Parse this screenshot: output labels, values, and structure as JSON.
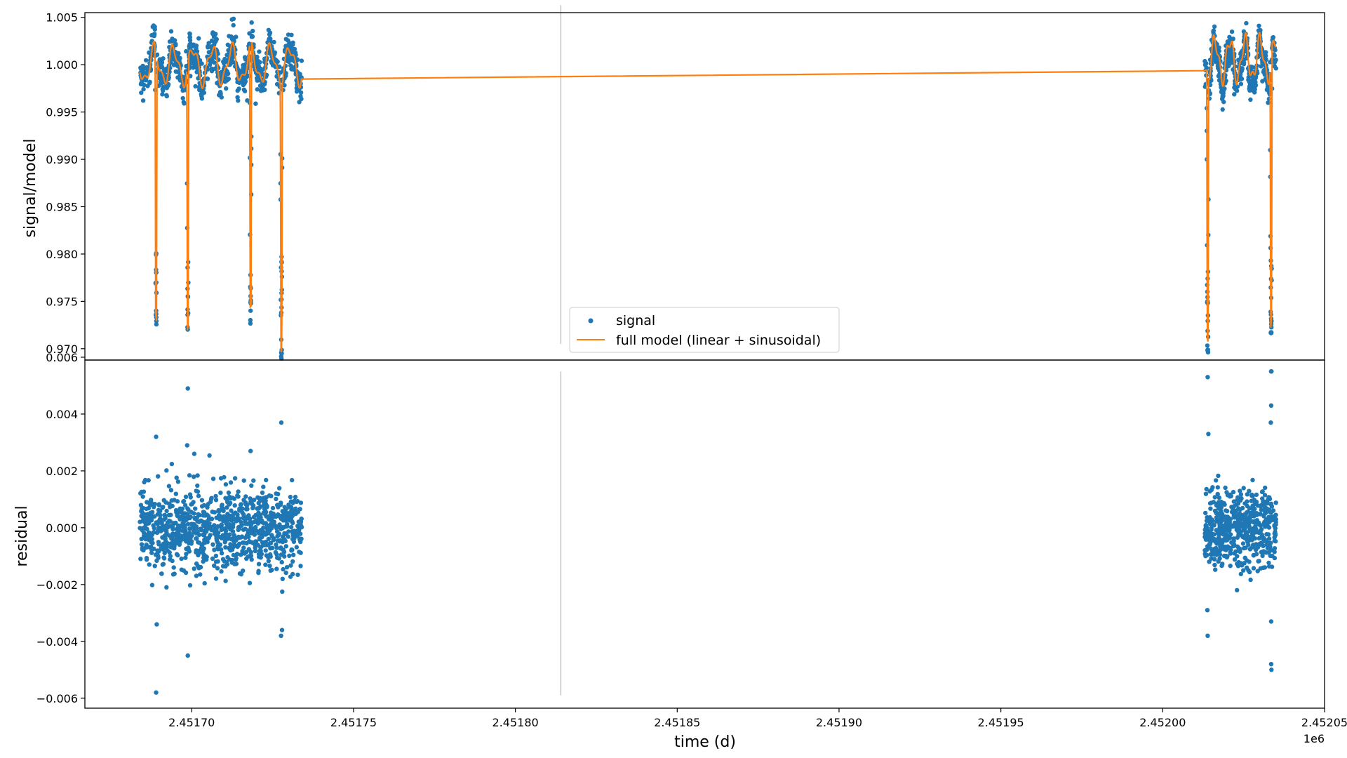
{
  "figure": {
    "background": "#ffffff"
  },
  "colors": {
    "signal": "#1f77b4",
    "model": "#ff7f0e",
    "separator": "#d3d3d3"
  },
  "chart_data": [
    {
      "id": "top",
      "type": "scatter",
      "xlabel": "",
      "ylabel": "signal/model",
      "xlim": [
        2451667,
        2452050
      ],
      "ylim": [
        0.9688,
        1.0055
      ],
      "yticks": [
        "1.005",
        "1.000",
        "0.995",
        "0.990",
        "0.985",
        "0.980",
        "0.975",
        "0.970"
      ],
      "ytick_values": [
        1.005,
        1.0,
        0.995,
        0.99,
        0.985,
        0.98,
        0.975,
        0.97
      ],
      "segments": [
        [
          2451684,
          2451734
        ],
        [
          2452013,
          2452035
        ]
      ],
      "transits": [
        2451689.0,
        2451698.8,
        2451718.2,
        2451727.7,
        2452013.9,
        2452033.5
      ],
      "transit_depth": 0.028,
      "separator_x": 2451814,
      "separator_yrange": [
        0.9705,
        1.0063
      ],
      "legend": {
        "placement": "lower-center",
        "entries": [
          {
            "label": "signal",
            "kind": "marker"
          },
          {
            "label": "full model (linear + sinusoidal)",
            "kind": "line"
          }
        ]
      },
      "series": [
        {
          "name": "signal",
          "kind": "points"
        },
        {
          "name": "full model (linear + sinusoidal)",
          "kind": "line",
          "baseline_start": 0.99995,
          "baseline_end": 1.0006
        }
      ]
    },
    {
      "id": "bottom",
      "type": "scatter",
      "xlabel": "time (d)",
      "ylabel": "residual",
      "x_offset_label": "1e6",
      "xlim": [
        2451667,
        2452050
      ],
      "ylim": [
        -0.00635,
        0.0059
      ],
      "xticks": [
        "2.45170",
        "2.45175",
        "2.45180",
        "2.45185",
        "2.45190",
        "2.45195",
        "2.45200",
        "2.45205"
      ],
      "xtick_values": [
        2451700,
        2451750,
        2451800,
        2451850,
        2451900,
        2451950,
        2452000,
        2452050
      ],
      "yticks": [
        "0.006",
        "0.004",
        "0.002",
        "0.000",
        "−0.002",
        "−0.004",
        "−0.006"
      ],
      "ytick_values": [
        0.006,
        0.004,
        0.002,
        0.0,
        -0.002,
        -0.004,
        -0.006
      ],
      "separator_x": 2451814,
      "separator_yrange": [
        -0.0059,
        0.0055
      ],
      "scatter_sigma": 0.0007,
      "outliers": [
        {
          "x": 2451689.0,
          "y": -0.0058
        },
        {
          "x": 2451689.0,
          "y": 0.0032
        },
        {
          "x": 2451689.2,
          "y": -0.0034
        },
        {
          "x": 2451698.8,
          "y": 0.0049
        },
        {
          "x": 2451698.8,
          "y": -0.0045
        },
        {
          "x": 2451698.6,
          "y": 0.0029
        },
        {
          "x": 2451700.8,
          "y": 0.0026
        },
        {
          "x": 2451718.2,
          "y": 0.0027
        },
        {
          "x": 2451727.7,
          "y": 0.0037
        },
        {
          "x": 2451727.6,
          "y": -0.0038
        },
        {
          "x": 2451727.9,
          "y": -0.0036
        },
        {
          "x": 2452013.9,
          "y": 0.0053
        },
        {
          "x": 2452013.9,
          "y": -0.0038
        },
        {
          "x": 2452014.1,
          "y": 0.0033
        },
        {
          "x": 2452013.8,
          "y": -0.0029
        },
        {
          "x": 2452033.5,
          "y": 0.0055
        },
        {
          "x": 2452033.6,
          "y": 0.0055
        },
        {
          "x": 2452033.5,
          "y": 0.0043
        },
        {
          "x": 2452033.4,
          "y": 0.0037
        },
        {
          "x": 2452033.5,
          "y": -0.0048
        },
        {
          "x": 2452033.6,
          "y": -0.005
        },
        {
          "x": 2452033.5,
          "y": -0.0033
        }
      ]
    }
  ]
}
